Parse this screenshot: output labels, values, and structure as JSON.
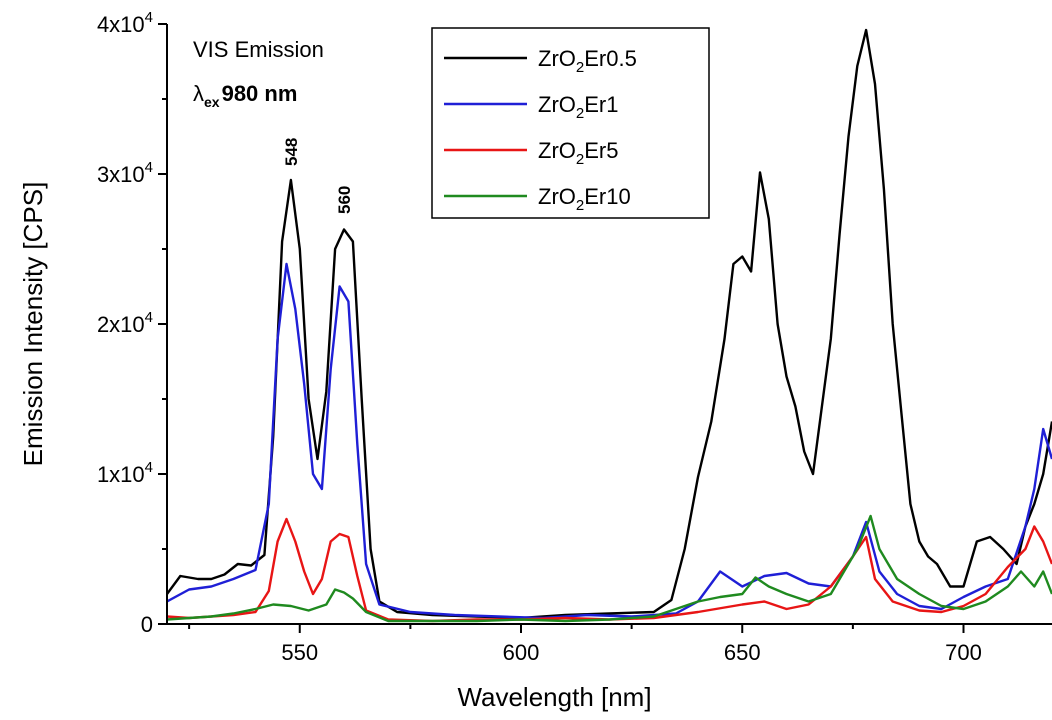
{
  "chart_data": {
    "type": "line",
    "title": "",
    "xlabel": "Wavelength [nm]",
    "ylabel": "Emission Intensity [CPS]",
    "xlim": [
      520,
      720
    ],
    "ylim": [
      0,
      40000
    ],
    "x_ticks": [
      {
        "value": 550,
        "label": "550"
      },
      {
        "value": 600,
        "label": "600"
      },
      {
        "value": 650,
        "label": "650"
      },
      {
        "value": 700,
        "label": "700"
      }
    ],
    "y_ticks": [
      {
        "value": 0,
        "base": "0",
        "exp": ""
      },
      {
        "value": 10000,
        "base": "1x10",
        "exp": "4"
      },
      {
        "value": 20000,
        "base": "2x10",
        "exp": "4"
      },
      {
        "value": 30000,
        "base": "3x10",
        "exp": "4"
      },
      {
        "value": 40000,
        "base": "4x10",
        "exp": "4"
      }
    ],
    "annotations": {
      "panel_title": "VIS Emission",
      "excitation_symbol": "λ",
      "excitation_sub": "ex",
      "excitation_value": "980 nm",
      "peaks": [
        {
          "x": 548,
          "y": 30000,
          "label": "548"
        },
        {
          "x": 560,
          "y": 26800,
          "label": "560"
        }
      ]
    },
    "legend_position": "top-center",
    "series": [
      {
        "name_main": "ZrO",
        "name_sub": "2",
        "name_rest": "Er0.5",
        "color": "#000000",
        "points": [
          [
            520,
            2000
          ],
          [
            523,
            3200
          ],
          [
            527,
            3000
          ],
          [
            530,
            3000
          ],
          [
            533,
            3300
          ],
          [
            536,
            4000
          ],
          [
            539,
            3900
          ],
          [
            542,
            4600
          ],
          [
            544,
            12500
          ],
          [
            546,
            25500
          ],
          [
            548,
            29600
          ],
          [
            550,
            25000
          ],
          [
            552,
            15000
          ],
          [
            554,
            11000
          ],
          [
            556,
            15500
          ],
          [
            558,
            25000
          ],
          [
            560,
            26300
          ],
          [
            562,
            25500
          ],
          [
            564,
            15000
          ],
          [
            566,
            5000
          ],
          [
            568,
            1500
          ],
          [
            572,
            800
          ],
          [
            580,
            600
          ],
          [
            590,
            500
          ],
          [
            600,
            400
          ],
          [
            610,
            600
          ],
          [
            620,
            700
          ],
          [
            630,
            800
          ],
          [
            634,
            1600
          ],
          [
            637,
            5000
          ],
          [
            640,
            9800
          ],
          [
            643,
            13500
          ],
          [
            646,
            19000
          ],
          [
            648,
            24000
          ],
          [
            650,
            24500
          ],
          [
            652,
            23500
          ],
          [
            654,
            30100
          ],
          [
            656,
            27000
          ],
          [
            658,
            20000
          ],
          [
            660,
            16500
          ],
          [
            662,
            14500
          ],
          [
            664,
            11500
          ],
          [
            666,
            10000
          ],
          [
            668,
            14500
          ],
          [
            670,
            19000
          ],
          [
            672,
            26000
          ],
          [
            674,
            32500
          ],
          [
            676,
            37200
          ],
          [
            678,
            39600
          ],
          [
            680,
            36000
          ],
          [
            682,
            29000
          ],
          [
            684,
            20000
          ],
          [
            686,
            14000
          ],
          [
            688,
            8000
          ],
          [
            690,
            5500
          ],
          [
            692,
            4500
          ],
          [
            694,
            4000
          ],
          [
            697,
            2500
          ],
          [
            700,
            2500
          ],
          [
            703,
            5500
          ],
          [
            706,
            5800
          ],
          [
            709,
            5000
          ],
          [
            712,
            4000
          ],
          [
            714,
            6500
          ],
          [
            716,
            8000
          ],
          [
            718,
            10000
          ],
          [
            720,
            13500
          ]
        ]
      },
      {
        "name_main": "ZrO",
        "name_sub": "2",
        "name_rest": "Er1",
        "color": "#1f1fd6",
        "points": [
          [
            520,
            1500
          ],
          [
            525,
            2300
          ],
          [
            530,
            2500
          ],
          [
            535,
            3000
          ],
          [
            540,
            3600
          ],
          [
            543,
            8000
          ],
          [
            545,
            19000
          ],
          [
            547,
            24000
          ],
          [
            549,
            21000
          ],
          [
            551,
            16000
          ],
          [
            553,
            10000
          ],
          [
            555,
            9000
          ],
          [
            557,
            17000
          ],
          [
            559,
            22500
          ],
          [
            561,
            21500
          ],
          [
            563,
            12000
          ],
          [
            565,
            4000
          ],
          [
            568,
            1300
          ],
          [
            575,
            800
          ],
          [
            585,
            600
          ],
          [
            595,
            500
          ],
          [
            605,
            400
          ],
          [
            615,
            600
          ],
          [
            625,
            500
          ],
          [
            635,
            700
          ],
          [
            640,
            1500
          ],
          [
            645,
            3500
          ],
          [
            650,
            2500
          ],
          [
            655,
            3200
          ],
          [
            660,
            3400
          ],
          [
            665,
            2700
          ],
          [
            670,
            2500
          ],
          [
            675,
            4500
          ],
          [
            678,
            6800
          ],
          [
            681,
            3500
          ],
          [
            685,
            2000
          ],
          [
            690,
            1200
          ],
          [
            695,
            1000
          ],
          [
            700,
            1800
          ],
          [
            705,
            2500
          ],
          [
            710,
            3000
          ],
          [
            714,
            6500
          ],
          [
            716,
            9000
          ],
          [
            718,
            13000
          ],
          [
            720,
            11000
          ]
        ]
      },
      {
        "name_main": "ZrO",
        "name_sub": "2",
        "name_rest": "Er5",
        "color": "#e81515",
        "points": [
          [
            520,
            500
          ],
          [
            525,
            400
          ],
          [
            530,
            500
          ],
          [
            535,
            600
          ],
          [
            540,
            800
          ],
          [
            543,
            2200
          ],
          [
            545,
            5500
          ],
          [
            547,
            7000
          ],
          [
            549,
            5500
          ],
          [
            551,
            3500
          ],
          [
            553,
            2000
          ],
          [
            555,
            3000
          ],
          [
            557,
            5500
          ],
          [
            559,
            6000
          ],
          [
            561,
            5800
          ],
          [
            563,
            3200
          ],
          [
            565,
            900
          ],
          [
            570,
            300
          ],
          [
            580,
            200
          ],
          [
            590,
            300
          ],
          [
            600,
            300
          ],
          [
            610,
            400
          ],
          [
            620,
            300
          ],
          [
            630,
            400
          ],
          [
            640,
            800
          ],
          [
            650,
            1300
          ],
          [
            655,
            1500
          ],
          [
            660,
            1000
          ],
          [
            665,
            1300
          ],
          [
            670,
            2500
          ],
          [
            675,
            4500
          ],
          [
            678,
            5800
          ],
          [
            680,
            3000
          ],
          [
            684,
            1500
          ],
          [
            690,
            900
          ],
          [
            695,
            800
          ],
          [
            700,
            1200
          ],
          [
            705,
            2000
          ],
          [
            710,
            3800
          ],
          [
            714,
            5000
          ],
          [
            716,
            6500
          ],
          [
            718,
            5500
          ],
          [
            720,
            4000
          ]
        ]
      },
      {
        "name_main": "ZrO",
        "name_sub": "2",
        "name_rest": "Er10",
        "color": "#1f8a1f",
        "points": [
          [
            520,
            300
          ],
          [
            525,
            400
          ],
          [
            530,
            500
          ],
          [
            535,
            700
          ],
          [
            540,
            1000
          ],
          [
            544,
            1300
          ],
          [
            548,
            1200
          ],
          [
            552,
            900
          ],
          [
            556,
            1300
          ],
          [
            558,
            2300
          ],
          [
            560,
            2100
          ],
          [
            562,
            1700
          ],
          [
            565,
            800
          ],
          [
            570,
            200
          ],
          [
            580,
            200
          ],
          [
            590,
            200
          ],
          [
            600,
            300
          ],
          [
            610,
            200
          ],
          [
            620,
            300
          ],
          [
            630,
            500
          ],
          [
            640,
            1500
          ],
          [
            645,
            1800
          ],
          [
            650,
            2000
          ],
          [
            653,
            3100
          ],
          [
            656,
            2500
          ],
          [
            660,
            2000
          ],
          [
            665,
            1500
          ],
          [
            670,
            2000
          ],
          [
            673,
            3500
          ],
          [
            676,
            5000
          ],
          [
            679,
            7200
          ],
          [
            681,
            5000
          ],
          [
            685,
            3000
          ],
          [
            690,
            2000
          ],
          [
            695,
            1200
          ],
          [
            700,
            1000
          ],
          [
            705,
            1500
          ],
          [
            710,
            2500
          ],
          [
            713,
            3500
          ],
          [
            716,
            2500
          ],
          [
            718,
            3500
          ],
          [
            720,
            2000
          ]
        ]
      }
    ]
  }
}
